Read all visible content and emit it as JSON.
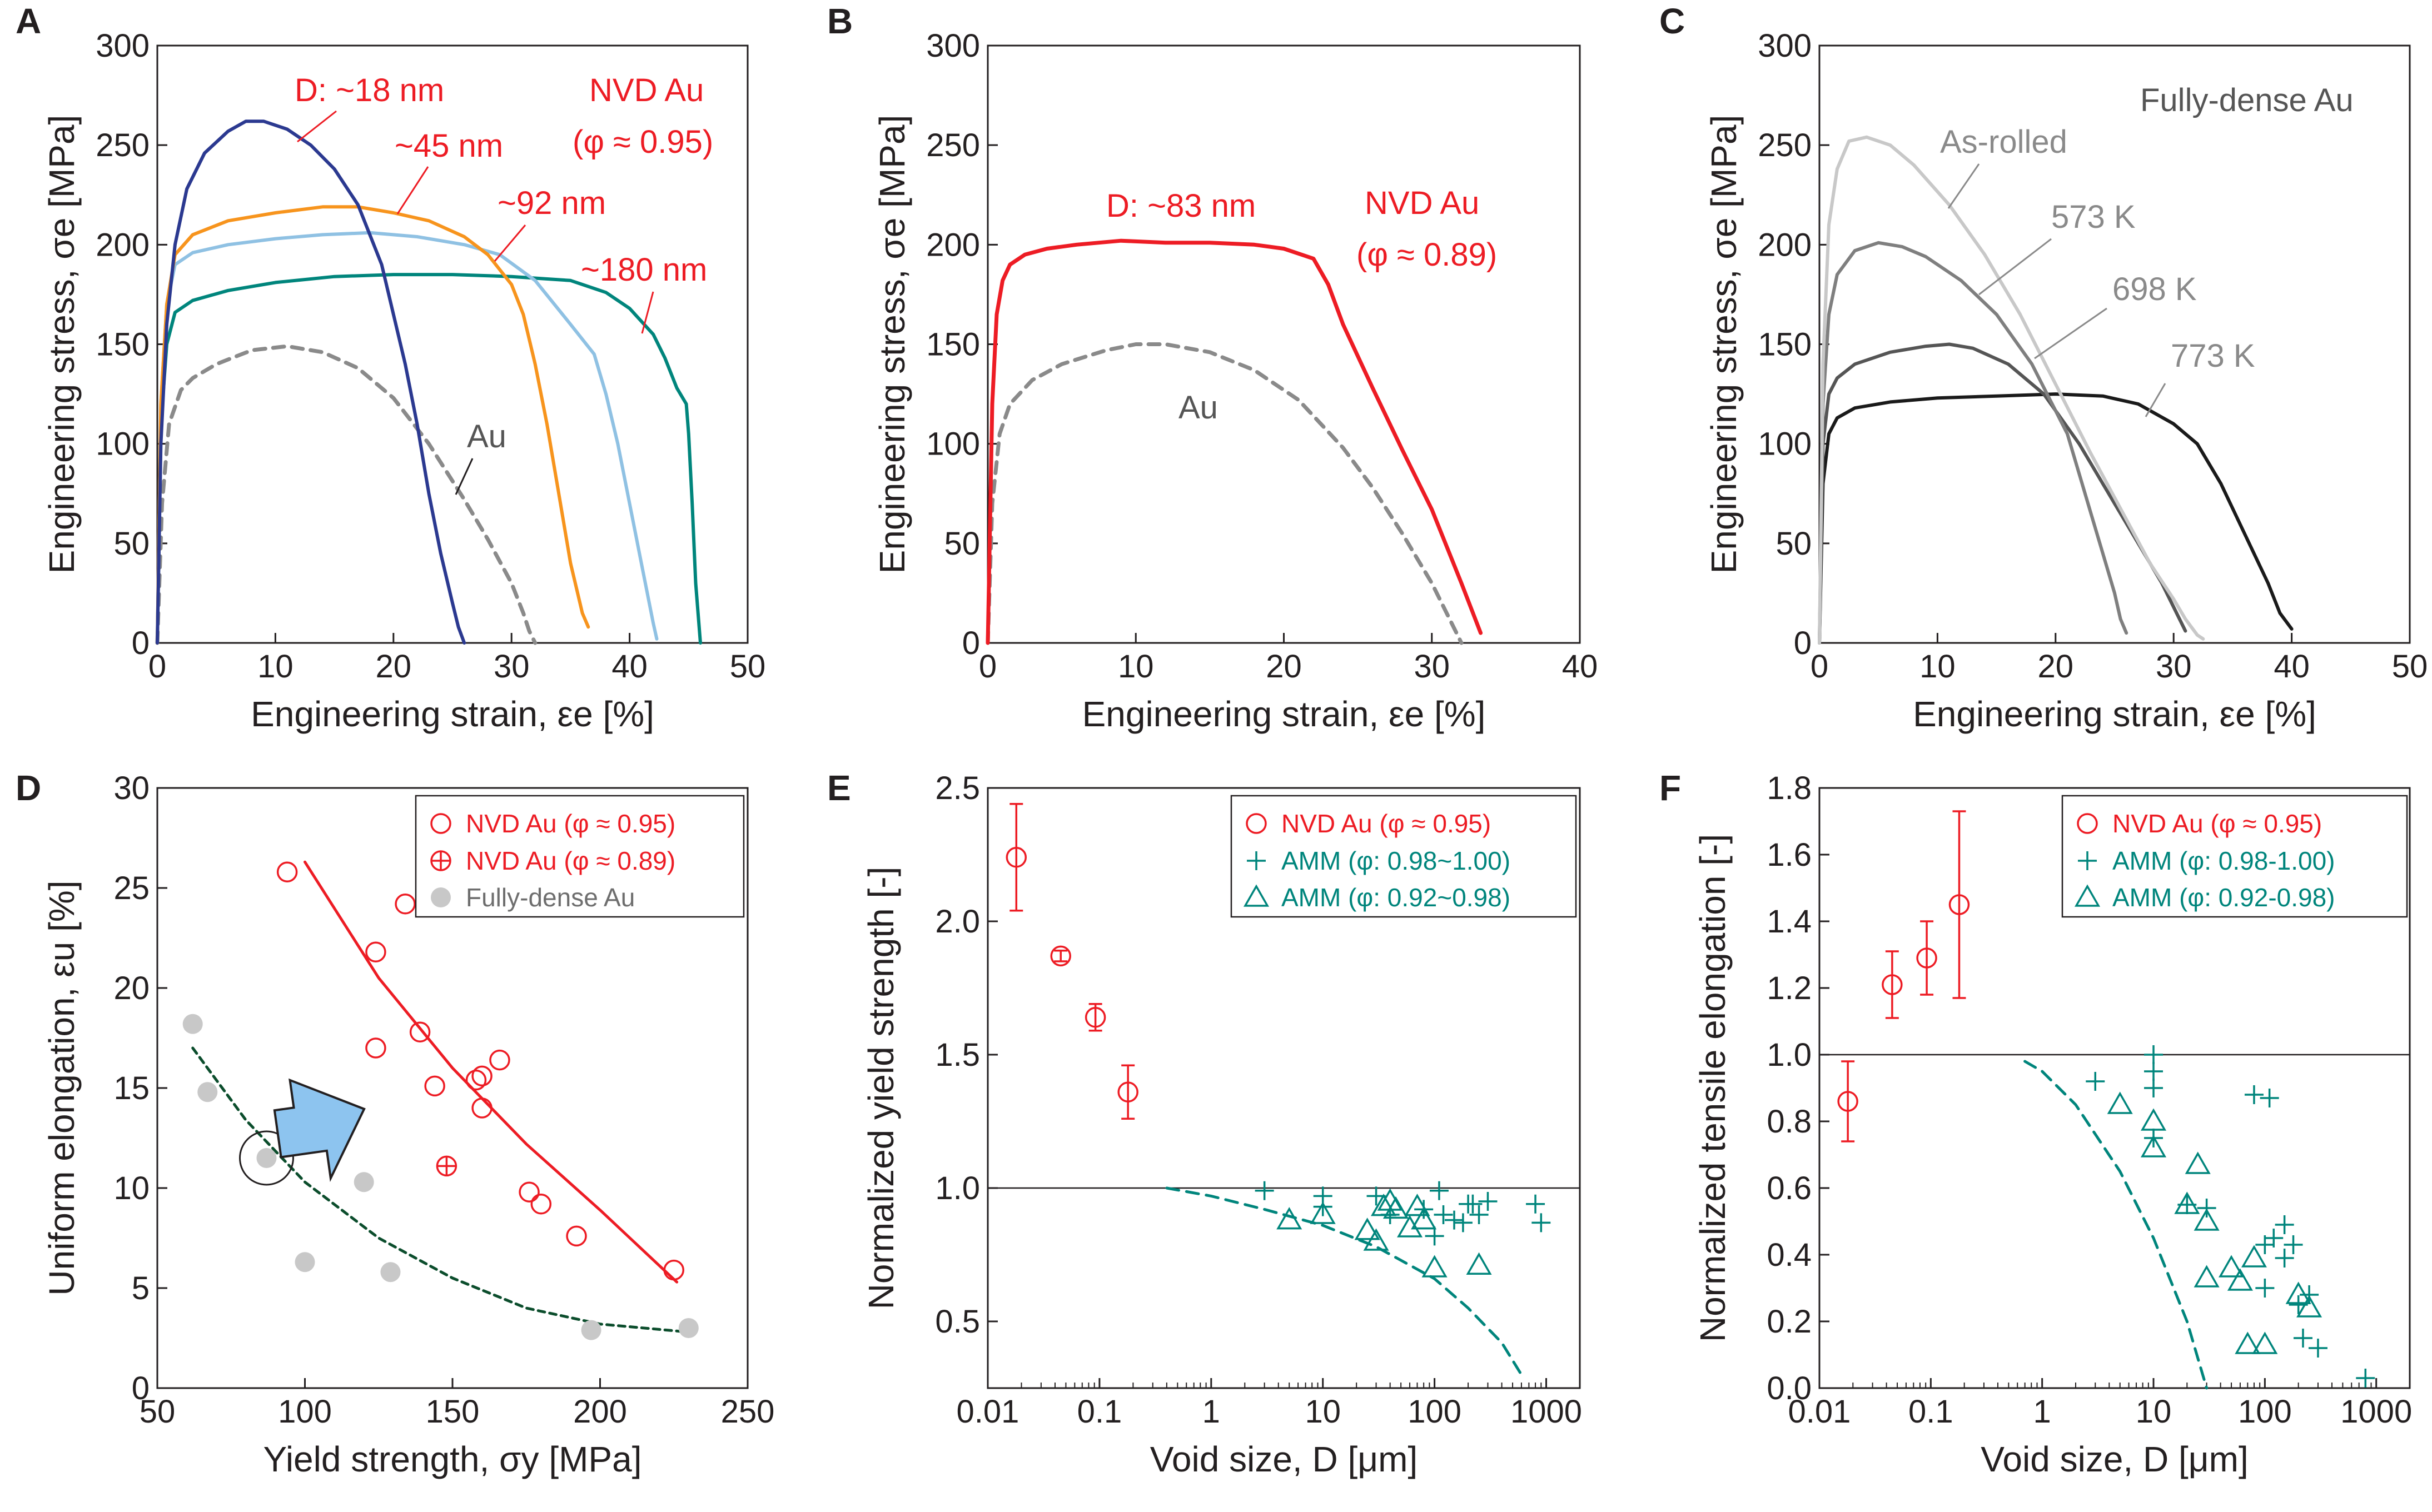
{
  "colors": {
    "red": "#ed1c24",
    "blue": "#2b3990",
    "orange": "#f7941d",
    "lightblue": "#8fc1e3",
    "teal": "#00857c",
    "gray": "#8a8a8a",
    "lightgray": "#c8c8c8",
    "midgray": "#7f7f7f",
    "darkgray": "#555555",
    "black": "#1a1a1a",
    "darkgreen": "#0b4d2c",
    "arrow": "#8dc4ef"
  },
  "chart_data": [
    {
      "panel": "A",
      "type": "line",
      "xlabel": "Engineering strain, εe  [%]",
      "ylabel": "Engineering stress, σe  [MPa]",
      "xlim": [
        0,
        50
      ],
      "ylim": [
        0,
        300
      ],
      "xticks": [
        "0",
        "10",
        "20",
        "30",
        "40",
        "50"
      ],
      "yticks": [
        "0",
        "50",
        "100",
        "150",
        "200",
        "250",
        "300"
      ],
      "annotations": [
        "D: ~18 nm",
        "~45 nm",
        "~92 nm",
        "~180 nm",
        "NVD Au",
        "(φ ≈ 0.95)",
        "Au"
      ],
      "series": [
        {
          "name": "~18 nm",
          "color": "blue",
          "x": [
            0,
            0.3,
            0.8,
            1.5,
            2.5,
            4,
            6,
            7.5,
            9,
            11,
            13,
            15,
            17,
            19,
            20,
            21,
            22,
            23,
            24,
            25,
            25.5,
            26
          ],
          "y": [
            0,
            100,
            160,
            200,
            228,
            246,
            257,
            262,
            262,
            258,
            250,
            238,
            220,
            190,
            165,
            140,
            110,
            75,
            45,
            20,
            8,
            0
          ]
        },
        {
          "name": "~45 nm",
          "color": "orange",
          "x": [
            0,
            0.3,
            0.8,
            1.5,
            3,
            6,
            10,
            14,
            17,
            20,
            23,
            26,
            28,
            30,
            31,
            32,
            33,
            34,
            35,
            36,
            36.5
          ],
          "y": [
            0,
            120,
            170,
            195,
            205,
            212,
            216,
            219,
            219,
            216,
            212,
            204,
            195,
            180,
            165,
            140,
            110,
            75,
            40,
            15,
            8
          ]
        },
        {
          "name": "~92 nm",
          "color": "lightblue",
          "x": [
            0,
            0.3,
            0.8,
            1.5,
            3,
            6,
            10,
            14,
            18,
            22,
            26,
            29,
            32,
            35,
            37,
            38,
            39,
            40,
            41,
            42,
            42.3
          ],
          "y": [
            0,
            120,
            170,
            190,
            196,
            200,
            203,
            205,
            206,
            204,
            200,
            195,
            182,
            160,
            145,
            125,
            100,
            70,
            40,
            10,
            2
          ]
        },
        {
          "name": "~180 nm",
          "color": "teal",
          "x": [
            0,
            0.3,
            0.8,
            1.5,
            3,
            6,
            10,
            15,
            20,
            25,
            30,
            35,
            38,
            40,
            42,
            43,
            44,
            44.8,
            45,
            45.3,
            45.6,
            46
          ],
          "y": [
            0,
            110,
            150,
            166,
            172,
            177,
            181,
            184,
            185,
            185,
            184,
            182,
            176,
            168,
            155,
            143,
            128,
            120,
            105,
            70,
            30,
            0
          ]
        },
        {
          "name": "Au",
          "color": "gray",
          "dashed": true,
          "x": [
            0,
            0.4,
            1,
            2,
            3,
            5,
            8,
            11,
            14,
            17,
            20,
            23,
            26,
            28,
            30,
            31,
            31.5,
            32
          ],
          "y": [
            0,
            70,
            110,
            127,
            133,
            140,
            147,
            149,
            146,
            138,
            123,
            100,
            72,
            52,
            30,
            15,
            6,
            0
          ]
        }
      ]
    },
    {
      "panel": "B",
      "type": "line",
      "xlabel": "Engineering strain, εe  [%]",
      "ylabel": "Engineering stress, σe  [MPa]",
      "xlim": [
        0,
        40
      ],
      "ylim": [
        0,
        300
      ],
      "xticks": [
        "0",
        "10",
        "20",
        "30",
        "40"
      ],
      "yticks": [
        "0",
        "50",
        "100",
        "150",
        "200",
        "250",
        "300"
      ],
      "annotations": [
        "D: ~83 nm",
        "NVD Au",
        "(φ ≈ 0.89)",
        "Au"
      ],
      "series": [
        {
          "name": "NVD Au (φ ≈ 0.89)",
          "color": "red",
          "x": [
            0,
            0.3,
            0.6,
            1,
            1.5,
            2.5,
            4,
            6,
            9,
            12,
            15,
            18,
            20,
            22,
            23,
            24,
            26,
            28,
            30,
            32,
            33.3
          ],
          "y": [
            0,
            120,
            165,
            182,
            190,
            195,
            198,
            200,
            202,
            201,
            201,
            200,
            198,
            193,
            180,
            160,
            128,
            97,
            67,
            30,
            5
          ]
        },
        {
          "name": "Au",
          "color": "gray",
          "dashed": true,
          "x": [
            0,
            0.3,
            0.8,
            1.5,
            3,
            5,
            8,
            10,
            12,
            15,
            18,
            21,
            24,
            26,
            28,
            30,
            31,
            32
          ],
          "y": [
            0,
            70,
            105,
            120,
            132,
            140,
            147,
            150,
            150,
            146,
            137,
            122,
            98,
            78,
            55,
            30,
            15,
            0
          ]
        }
      ]
    },
    {
      "panel": "C",
      "type": "line",
      "xlabel": "Engineering strain, εe  [%]",
      "ylabel": "Engineering stress, σe [MPa]",
      "xlim": [
        0,
        50
      ],
      "ylim": [
        0,
        300
      ],
      "xticks": [
        "0",
        "10",
        "20",
        "30",
        "40",
        "50"
      ],
      "yticks": [
        "0",
        "50",
        "100",
        "150",
        "200",
        "250",
        "300"
      ],
      "annotations": [
        "Fully-dense Au",
        "As-rolled",
        "573 K",
        "698 K",
        "773 K"
      ],
      "series": [
        {
          "name": "As-rolled",
          "color": "lightgray",
          "x": [
            0,
            0.3,
            0.8,
            1.5,
            2.5,
            4,
            6,
            8,
            11,
            14,
            17,
            20,
            23,
            26,
            28,
            30,
            31,
            32,
            32.5
          ],
          "y": [
            0,
            140,
            210,
            238,
            252,
            254,
            250,
            240,
            220,
            195,
            165,
            130,
            95,
            62,
            40,
            22,
            12,
            4,
            2
          ]
        },
        {
          "name": "573 K",
          "color": "midgray",
          "x": [
            0,
            0.3,
            0.8,
            1.5,
            3,
            5,
            7,
            9,
            12,
            15,
            18,
            21,
            23,
            24,
            25,
            25.5,
            26
          ],
          "y": [
            0,
            120,
            165,
            185,
            197,
            201,
            199,
            194,
            182,
            165,
            140,
            105,
            65,
            45,
            25,
            12,
            5
          ]
        },
        {
          "name": "698 K",
          "color": "darkgray",
          "x": [
            0,
            0.3,
            0.8,
            1.5,
            3,
            6,
            9,
            11,
            13,
            16,
            19,
            22,
            25,
            27,
            29,
            30,
            31
          ],
          "y": [
            0,
            100,
            125,
            133,
            140,
            146,
            149,
            150,
            148,
            140,
            125,
            100,
            70,
            50,
            30,
            18,
            6
          ]
        },
        {
          "name": "773 K",
          "color": "black",
          "x": [
            0,
            0.3,
            0.8,
            1.5,
            3,
            6,
            10,
            15,
            20,
            24,
            27,
            30,
            32,
            34,
            36,
            38,
            39,
            40
          ],
          "y": [
            0,
            80,
            105,
            113,
            118,
            121,
            123,
            124,
            125,
            124,
            120,
            110,
            100,
            80,
            55,
            30,
            15,
            7
          ]
        }
      ]
    },
    {
      "panel": "D",
      "type": "scatter",
      "xlabel": "Yield strength, σy [MPa]",
      "ylabel": "Uniform elongation, εu [%]",
      "xlim": [
        50,
        250
      ],
      "ylim": [
        0,
        30
      ],
      "xticks": [
        "50",
        "100",
        "150",
        "200",
        "250"
      ],
      "yticks": [
        "0",
        "5",
        "10",
        "15",
        "20",
        "25",
        "30"
      ],
      "legend": [
        "NVD Au (φ ≈ 0.95)",
        "NVD Au (φ ≈ 0.89)",
        "Fully-dense Au"
      ],
      "series": [
        {
          "name": "NVD Au (φ ≈ 0.95)",
          "x": [
            94,
            124,
            134,
            124,
            139,
            144,
            158,
            160,
            160,
            166,
            176,
            180,
            192,
            225
          ],
          "y": [
            25.8,
            21.8,
            24.2,
            17,
            17.8,
            15.1,
            15.4,
            15.6,
            14,
            16.4,
            9.8,
            9.2,
            7.6,
            5.9
          ]
        },
        {
          "name": "NVD Au (φ ≈ 0.89)",
          "x": [
            148
          ],
          "y": [
            11.1
          ]
        },
        {
          "name": "Fully-dense Au",
          "x": [
            62,
            67,
            87,
            100,
            120,
            129,
            197,
            230
          ],
          "y": [
            18.2,
            14.8,
            11.5,
            6.3,
            10.3,
            5.8,
            2.9,
            3
          ]
        },
        {
          "name": "NVD fit",
          "x": [
            100,
            125,
            150,
            175,
            200,
            226
          ],
          "y": [
            26.3,
            20.5,
            16,
            12.2,
            8.9,
            5.3
          ]
        },
        {
          "name": "Au fit",
          "x": [
            62,
            80,
            100,
            125,
            150,
            175,
            200,
            230
          ],
          "y": [
            17,
            13.4,
            10.3,
            7.5,
            5.5,
            4,
            3.2,
            2.8
          ]
        }
      ]
    },
    {
      "panel": "E",
      "type": "scatter",
      "xscale": "log",
      "xlabel": "Void size, D [μm]",
      "ylabel": "Normalized yield strength [-]",
      "xlim": [
        0.01,
        2000
      ],
      "ylim": [
        0.25,
        2.5
      ],
      "xticks": [
        "0.01",
        "0.1",
        "1",
        "10",
        "100",
        "1000"
      ],
      "yticks": [
        "0.5",
        "1.0",
        "1.5",
        "2.0",
        "2.5"
      ],
      "legend": [
        "NVD Au (φ ≈ 0.95)",
        "AMM (φ: 0.98~1.00)",
        "AMM (φ: 0.92~0.98)"
      ],
      "series": [
        {
          "name": "NVD Au (φ ≈ 0.95)",
          "x": [
            0.018,
            0.045,
            0.092,
            0.18
          ],
          "y": [
            2.24,
            1.87,
            1.64,
            1.36
          ],
          "err": [
            0.2,
            0.02,
            0.05,
            0.1
          ]
        },
        {
          "name": "AMM (φ: 0.98~1.00)",
          "x": [
            3,
            10,
            10,
            30,
            40,
            80,
            100,
            110,
            120,
            150,
            180,
            200,
            220,
            250,
            300,
            800,
            900
          ],
          "y": [
            0.99,
            0.97,
            0.93,
            0.97,
            0.9,
            0.92,
            0.82,
            0.99,
            0.9,
            0.88,
            0.87,
            0.94,
            0.94,
            0.9,
            0.95,
            0.94,
            0.87
          ]
        },
        {
          "name": "AMM (φ: 0.92~0.98)",
          "x": [
            5,
            10,
            25,
            30,
            35,
            40,
            45,
            60,
            70,
            80,
            100,
            250
          ],
          "y": [
            0.88,
            0.9,
            0.84,
            0.8,
            0.93,
            0.95,
            0.92,
            0.85,
            0.93,
            0.88,
            0.7,
            0.71
          ]
        },
        {
          "name": "unity",
          "x": [
            0.01,
            2000
          ],
          "y": [
            1,
            1
          ]
        },
        {
          "name": "AMM trend",
          "x": [
            0.4,
            1,
            3,
            10,
            30,
            100,
            200,
            400,
            600
          ],
          "y": [
            1,
            0.97,
            0.92,
            0.86,
            0.78,
            0.66,
            0.55,
            0.42,
            0.3
          ]
        }
      ]
    },
    {
      "panel": "F",
      "type": "scatter",
      "xscale": "log",
      "xlabel": "Void size, D [μm]",
      "ylabel": "Normalized tensile elongation [-]",
      "xlim": [
        0.01,
        2000
      ],
      "ylim": [
        0,
        1.8
      ],
      "xticks": [
        "0.01",
        "0.1",
        "1",
        "10",
        "100",
        "1000"
      ],
      "yticks": [
        "0.0",
        "0.2",
        "0.4",
        "0.6",
        "0.8",
        "1.0",
        "1.2",
        "1.4",
        "1.6",
        "1.8"
      ],
      "legend": [
        "NVD Au (φ ≈ 0.95)",
        "AMM (φ: 0.98-1.00)",
        "AMM (φ: 0.92-0.98)"
      ],
      "series": [
        {
          "name": "NVD Au (φ ≈ 0.95)",
          "x": [
            0.018,
            0.045,
            0.092,
            0.18
          ],
          "y": [
            0.86,
            1.21,
            1.29,
            1.45
          ],
          "err": [
            0.12,
            0.1,
            0.11,
            0.28
          ]
        },
        {
          "name": "AMM (φ: 0.98-1.00)",
          "x": [
            3,
            10,
            10,
            10,
            10,
            20,
            30,
            80,
            100,
            100,
            110,
            120,
            150,
            150,
            180,
            200,
            220,
            250,
            300,
            800
          ],
          "y": [
            0.92,
            1,
            0.95,
            0.9,
            0.75,
            0.55,
            0.54,
            0.88,
            0.43,
            0.3,
            0.87,
            0.45,
            0.49,
            0.39,
            0.43,
            0.25,
            0.15,
            0.28,
            0.12,
            0.03
          ]
        },
        {
          "name": "AMM (φ: 0.92-0.98)",
          "x": [
            5,
            10,
            10,
            20,
            25,
            30,
            30,
            50,
            60,
            70,
            80,
            100,
            200,
            250
          ],
          "y": [
            0.85,
            0.8,
            0.72,
            0.55,
            0.67,
            0.5,
            0.33,
            0.36,
            0.32,
            0.13,
            0.39,
            0.13,
            0.28,
            0.24
          ]
        },
        {
          "name": "unity",
          "x": [
            0.01,
            2000
          ],
          "y": [
            1,
            1
          ]
        },
        {
          "name": "AMM trend",
          "x": [
            0.7,
            1,
            2,
            5,
            10,
            20,
            30
          ],
          "y": [
            0.98,
            0.95,
            0.85,
            0.65,
            0.45,
            0.2,
            0
          ]
        }
      ]
    }
  ]
}
